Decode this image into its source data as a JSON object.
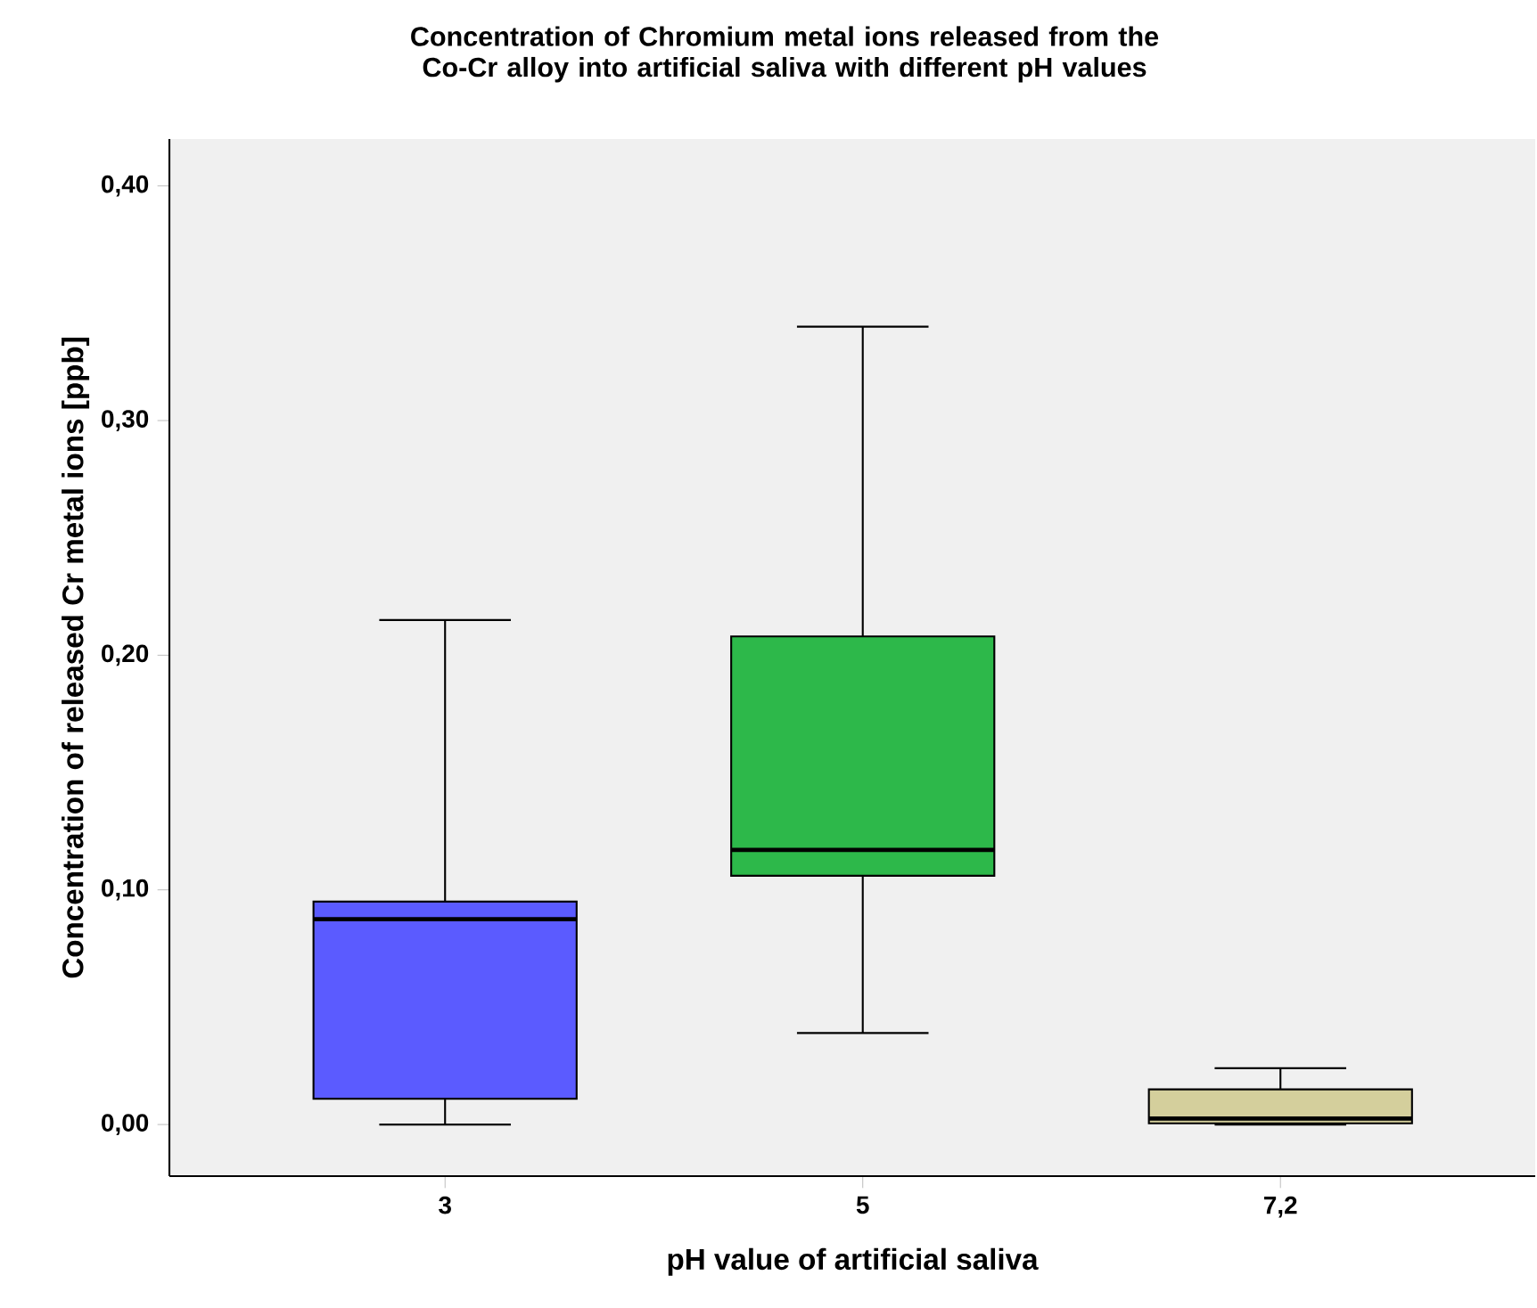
{
  "chart_data": {
    "type": "box",
    "title": "Concentration of Chromium metal ions released from the Co-Cr alloy into artificial saliva with different pH values",
    "xlabel": "pH value of artificial saliva",
    "ylabel": "Concentration of released Cr metal ions [ppb]",
    "categories": [
      "3",
      "5",
      "7,2"
    ],
    "colors": [
      "#5b5bff",
      "#2db84a",
      "#d4cf9c"
    ],
    "boxes": [
      {
        "low": 0,
        "q1": 0.011,
        "median": 0.0875,
        "q3": 0.095,
        "high": 0.215
      },
      {
        "low": 0.039,
        "q1": 0.106,
        "median": 0.117,
        "q3": 0.208,
        "high": 0.34
      },
      {
        "low": 0,
        "q1": 0.0005,
        "median": 0.0025,
        "q3": 0.015,
        "high": 0.024
      }
    ],
    "ylim": [
      -0.022,
      0.42
    ],
    "yticks": [
      {
        "value": 0,
        "label": "0,00"
      },
      {
        "value": 0.1,
        "label": "0,10"
      },
      {
        "value": 0.2,
        "label": "0,20"
      },
      {
        "value": 0.3,
        "label": "0,30"
      },
      {
        "value": 0.4,
        "label": "0,40"
      }
    ]
  }
}
